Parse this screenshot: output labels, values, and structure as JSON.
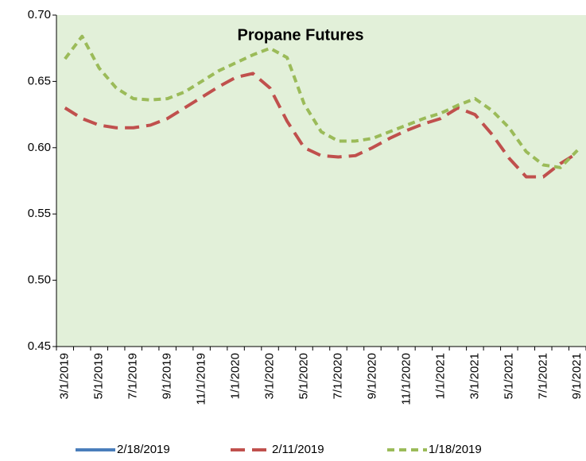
{
  "chart_data": {
    "type": "line",
    "title": "Propane Futures",
    "categories": [
      "3/1/2019",
      null,
      "5/1/2019",
      null,
      "7/1/2019",
      null,
      "9/1/2019",
      null,
      "11/1/2019",
      null,
      "1/1/2020",
      null,
      "3/1/2020",
      null,
      "5/1/2020",
      null,
      "7/1/2020",
      null,
      "9/1/2020",
      null,
      "11/1/2020",
      null,
      "1/1/2021",
      null,
      "3/1/2021",
      null,
      "5/1/2021",
      null,
      "7/1/2021",
      null,
      "9/1/2021"
    ],
    "series": [
      {
        "name": "2/18/2019",
        "color": "#4a7ebb",
        "dash": "solid",
        "values": [
          null,
          null,
          null,
          null,
          null,
          null,
          null,
          null,
          null,
          null,
          null,
          null,
          null,
          null,
          null,
          null,
          null,
          null,
          null,
          null,
          null,
          null,
          null,
          null,
          null,
          null,
          null,
          null,
          null,
          null,
          null
        ]
      },
      {
        "name": "2/11/2019",
        "color": "#c0504d",
        "dash": "long",
        "values": [
          0.63,
          0.622,
          0.617,
          0.615,
          0.615,
          0.617,
          0.622,
          0.63,
          0.638,
          0.646,
          0.653,
          0.656,
          0.645,
          0.62,
          0.6,
          0.594,
          0.593,
          0.594,
          0.6,
          0.607,
          0.613,
          0.618,
          0.622,
          0.63,
          0.625,
          0.61,
          0.592,
          0.578,
          0.578,
          0.588,
          0.596
        ]
      },
      {
        "name": "1/18/2019",
        "color": "#9bbb59",
        "dash": "short",
        "values": [
          0.667,
          0.684,
          0.66,
          0.645,
          0.637,
          0.636,
          0.637,
          0.642,
          0.65,
          0.658,
          0.664,
          0.67,
          0.675,
          0.668,
          0.633,
          0.612,
          0.605,
          0.605,
          0.607,
          0.612,
          0.617,
          0.622,
          0.626,
          0.632,
          0.637,
          0.628,
          0.615,
          0.597,
          0.587,
          0.585,
          0.598
        ]
      }
    ],
    "ylim": [
      0.45,
      0.7
    ],
    "yticks": [
      {
        "value": 0.45,
        "label": "0.45"
      },
      {
        "value": 0.5,
        "label": "0.50"
      },
      0.55,
      {
        "value": 0.6,
        "label": "0.60"
      },
      0.65,
      {
        "value": 0.7,
        "label": "0.70"
      }
    ],
    "plot_background": "#e2f0d9"
  }
}
